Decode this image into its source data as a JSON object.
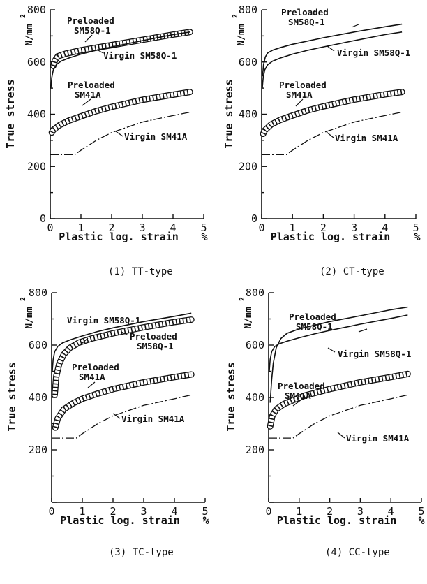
{
  "chart_data": [
    {
      "type": "line",
      "caption": "(1) TT-type",
      "xlabel": "Plastic log. strain",
      "x_unit": "%",
      "ylabel": "True stress",
      "y_unit": "N/mm",
      "xlim": [
        0,
        5
      ],
      "ylim": [
        0,
        800
      ],
      "xticks": [
        "0",
        "1",
        "2",
        "3",
        "4",
        "5"
      ],
      "yticks": [
        "0",
        "200",
        "400",
        "600",
        "800"
      ],
      "series": [
        {
          "name": "Preloaded SM58Q-1",
          "style": "band",
          "x": [
            0.1,
            0.15,
            0.25,
            0.5,
            1.0,
            2.0,
            3.0,
            4.0,
            4.55
          ],
          "y": [
            585,
            605,
            622,
            632,
            645,
            665,
            685,
            705,
            715
          ]
        },
        {
          "name": "Virgin SM58Q-1",
          "style": "solid",
          "x": [
            0.02,
            0.05,
            0.1,
            0.2,
            0.35,
            0.6,
            1.0,
            1.5,
            2.0,
            3.0,
            4.0,
            4.55
          ],
          "y": [
            500,
            540,
            570,
            590,
            603,
            615,
            630,
            645,
            658,
            682,
            705,
            715
          ]
        },
        {
          "name": "Preloaded SM41A",
          "style": "band",
          "x": [
            0.05,
            0.1,
            0.3,
            0.6,
            1.0,
            1.5,
            2.0,
            3.0,
            4.0,
            4.55
          ],
          "y": [
            330,
            340,
            358,
            375,
            392,
            412,
            428,
            455,
            475,
            485
          ]
        },
        {
          "name": "Virgin SM41A",
          "style": "dashdot",
          "x": [
            0,
            0.8,
            1.0,
            1.5,
            2.0,
            3.0,
            4.0,
            4.55
          ],
          "y": [
            245,
            245,
            262,
            300,
            330,
            370,
            395,
            408
          ]
        }
      ],
      "annotations": [
        {
          "lines": [
            "Preloaded",
            "SM58Q-1"
          ],
          "series": "Preloaded SM58Q-1"
        },
        {
          "lines": [
            "Virgin SM58Q-1"
          ],
          "series": "Virgin SM58Q-1"
        },
        {
          "lines": [
            "Preloaded",
            "SM41A"
          ],
          "series": "Preloaded SM41A"
        },
        {
          "lines": [
            "Virgin SM41A"
          ],
          "series": "Virgin SM41A"
        }
      ]
    },
    {
      "type": "line",
      "caption": "(2) CT-type",
      "xlabel": "Plastic log. strain",
      "x_unit": "%",
      "ylabel": "True stress",
      "y_unit": "N/mm",
      "xlim": [
        0,
        5
      ],
      "ylim": [
        0,
        800
      ],
      "xticks": [
        "0",
        "1",
        "2",
        "3",
        "4",
        "5"
      ],
      "yticks": [
        "0",
        "200",
        "400",
        "600",
        "800"
      ],
      "series": [
        {
          "name": "Preloaded SM58Q-1",
          "style": "solid",
          "x": [
            0.03,
            0.06,
            0.12,
            0.2,
            0.35,
            0.6,
            1.0,
            2.0,
            3.0,
            4.0,
            4.55
          ],
          "y": [
            545,
            590,
            620,
            635,
            645,
            655,
            668,
            693,
            715,
            735,
            745
          ]
        },
        {
          "name": "Virgin SM58Q-1",
          "style": "solid",
          "x": [
            0.02,
            0.05,
            0.1,
            0.2,
            0.35,
            0.6,
            1.0,
            1.5,
            2.0,
            3.0,
            4.0,
            4.55
          ],
          "y": [
            500,
            540,
            570,
            590,
            603,
            615,
            630,
            645,
            658,
            682,
            705,
            715
          ]
        },
        {
          "name": "Preloaded SM41A",
          "style": "band",
          "x": [
            0.05,
            0.1,
            0.3,
            0.6,
            1.0,
            1.5,
            2.0,
            3.0,
            4.0,
            4.55
          ],
          "y": [
            325,
            338,
            360,
            378,
            395,
            415,
            430,
            456,
            476,
            485
          ]
        },
        {
          "name": "Virgin SM41A",
          "style": "dashdot",
          "x": [
            0,
            0.8,
            1.0,
            1.5,
            2.0,
            3.0,
            4.0,
            4.55
          ],
          "y": [
            245,
            245,
            262,
            300,
            330,
            370,
            395,
            408
          ]
        }
      ],
      "annotations": [
        {
          "lines": [
            "Preloaded",
            "SM58Q-1"
          ],
          "series": "Preloaded SM58Q-1"
        },
        {
          "lines": [
            "Virgin SM58Q-1"
          ],
          "series": "Virgin SM58Q-1"
        },
        {
          "lines": [
            "Preloaded",
            "SM41A"
          ],
          "series": "Preloaded SM41A"
        },
        {
          "lines": [
            "Virgin SM41A"
          ],
          "series": "Virgin SM41A"
        }
      ]
    },
    {
      "type": "line",
      "caption": "(3) TC-type",
      "xlabel": "Plastic log. strain",
      "x_unit": "%",
      "ylabel": "True stress",
      "y_unit": "N/mm",
      "xlim": [
        0,
        5
      ],
      "ylim": [
        0,
        800
      ],
      "xticks": [
        "0",
        "1",
        "2",
        "3",
        "4",
        "5"
      ],
      "yticks": [
        "200",
        "400",
        "600",
        "800"
      ],
      "series": [
        {
          "name": "Virgin SM58Q-1",
          "style": "solid",
          "x": [
            0.02,
            0.05,
            0.1,
            0.2,
            0.35,
            0.6,
            1.0,
            1.5,
            2.0,
            3.0,
            4.0,
            4.55
          ],
          "y": [
            500,
            545,
            575,
            595,
            608,
            620,
            635,
            652,
            666,
            690,
            710,
            722
          ]
        },
        {
          "name": "Preloaded SM58Q-1",
          "style": "band",
          "x": [
            0.1,
            0.15,
            0.25,
            0.4,
            0.6,
            0.9,
            1.3,
            2.0,
            3.0,
            4.0,
            4.55
          ],
          "y": [
            410,
            480,
            530,
            565,
            590,
            610,
            625,
            645,
            668,
            688,
            697
          ]
        },
        {
          "name": "Preloaded SM41A",
          "style": "band",
          "x": [
            0.12,
            0.2,
            0.4,
            0.7,
            1.0,
            1.5,
            2.0,
            3.0,
            4.0,
            4.55
          ],
          "y": [
            285,
            320,
            355,
            378,
            395,
            415,
            432,
            458,
            478,
            488
          ]
        },
        {
          "name": "Virgin SM41A",
          "style": "dashdot",
          "x": [
            0,
            0.8,
            1.0,
            1.5,
            2.0,
            3.0,
            4.0,
            4.55
          ],
          "y": [
            245,
            245,
            262,
            300,
            330,
            370,
            395,
            410
          ]
        }
      ],
      "annotations": [
        {
          "lines": [
            "Virgin SM58Q-1"
          ],
          "series": "Virgin SM58Q-1"
        },
        {
          "lines": [
            "Preloaded",
            "SM58Q-1"
          ],
          "series": "Preloaded SM58Q-1"
        },
        {
          "lines": [
            "Preloaded",
            "SM41A"
          ],
          "series": "Preloaded SM41A"
        },
        {
          "lines": [
            "Virgin SM41A"
          ],
          "series": "Virgin SM41A"
        }
      ]
    },
    {
      "type": "line",
      "caption": "(4) CC-type",
      "xlabel": "Plastic log. strain",
      "x_unit": "%",
      "ylabel": "True stress",
      "y_unit": "N/mm",
      "xlim": [
        0,
        5
      ],
      "ylim": [
        0,
        800
      ],
      "xticks": [
        "0",
        "1",
        "2",
        "3",
        "4",
        "5"
      ],
      "yticks": [
        "200",
        "400",
        "600",
        "800"
      ],
      "series": [
        {
          "name": "Preloaded SM58Q-1",
          "style": "solid",
          "x": [
            0.05,
            0.1,
            0.15,
            0.25,
            0.4,
            0.6,
            1.0,
            2.0,
            3.0,
            4.0,
            4.55
          ],
          "y": [
            380,
            470,
            530,
            590,
            625,
            645,
            662,
            690,
            712,
            735,
            745
          ]
        },
        {
          "name": "Virgin SM58Q-1",
          "style": "solid",
          "x": [
            0.02,
            0.05,
            0.1,
            0.2,
            0.35,
            0.6,
            1.0,
            1.5,
            2.0,
            3.0,
            4.0,
            4.55
          ],
          "y": [
            500,
            545,
            575,
            595,
            605,
            615,
            628,
            643,
            656,
            680,
            702,
            715
          ]
        },
        {
          "name": "Preloaded SM41A",
          "style": "band",
          "x": [
            0.05,
            0.12,
            0.25,
            0.5,
            0.8,
            1.2,
            2.0,
            3.0,
            4.0,
            4.55
          ],
          "y": [
            290,
            330,
            355,
            375,
            390,
            408,
            432,
            458,
            478,
            490
          ]
        },
        {
          "name": "Virgin SM41A",
          "style": "dashdot",
          "x": [
            0,
            0.8,
            1.0,
            1.5,
            2.0,
            3.0,
            4.0,
            4.55
          ],
          "y": [
            245,
            245,
            262,
            300,
            330,
            370,
            395,
            410
          ]
        }
      ],
      "annotations": [
        {
          "lines": [
            "Preloaded",
            "SM58Q-1"
          ],
          "series": "Preloaded SM58Q-1"
        },
        {
          "lines": [
            "Virgin SM58Q-1"
          ],
          "series": "Virgin SM58Q-1"
        },
        {
          "lines": [
            "Preloaded",
            "SM41A"
          ],
          "series": "Preloaded SM41A"
        },
        {
          "lines": [
            "Virgin SM41A"
          ],
          "series": "Virgin SM41A"
        }
      ]
    }
  ]
}
